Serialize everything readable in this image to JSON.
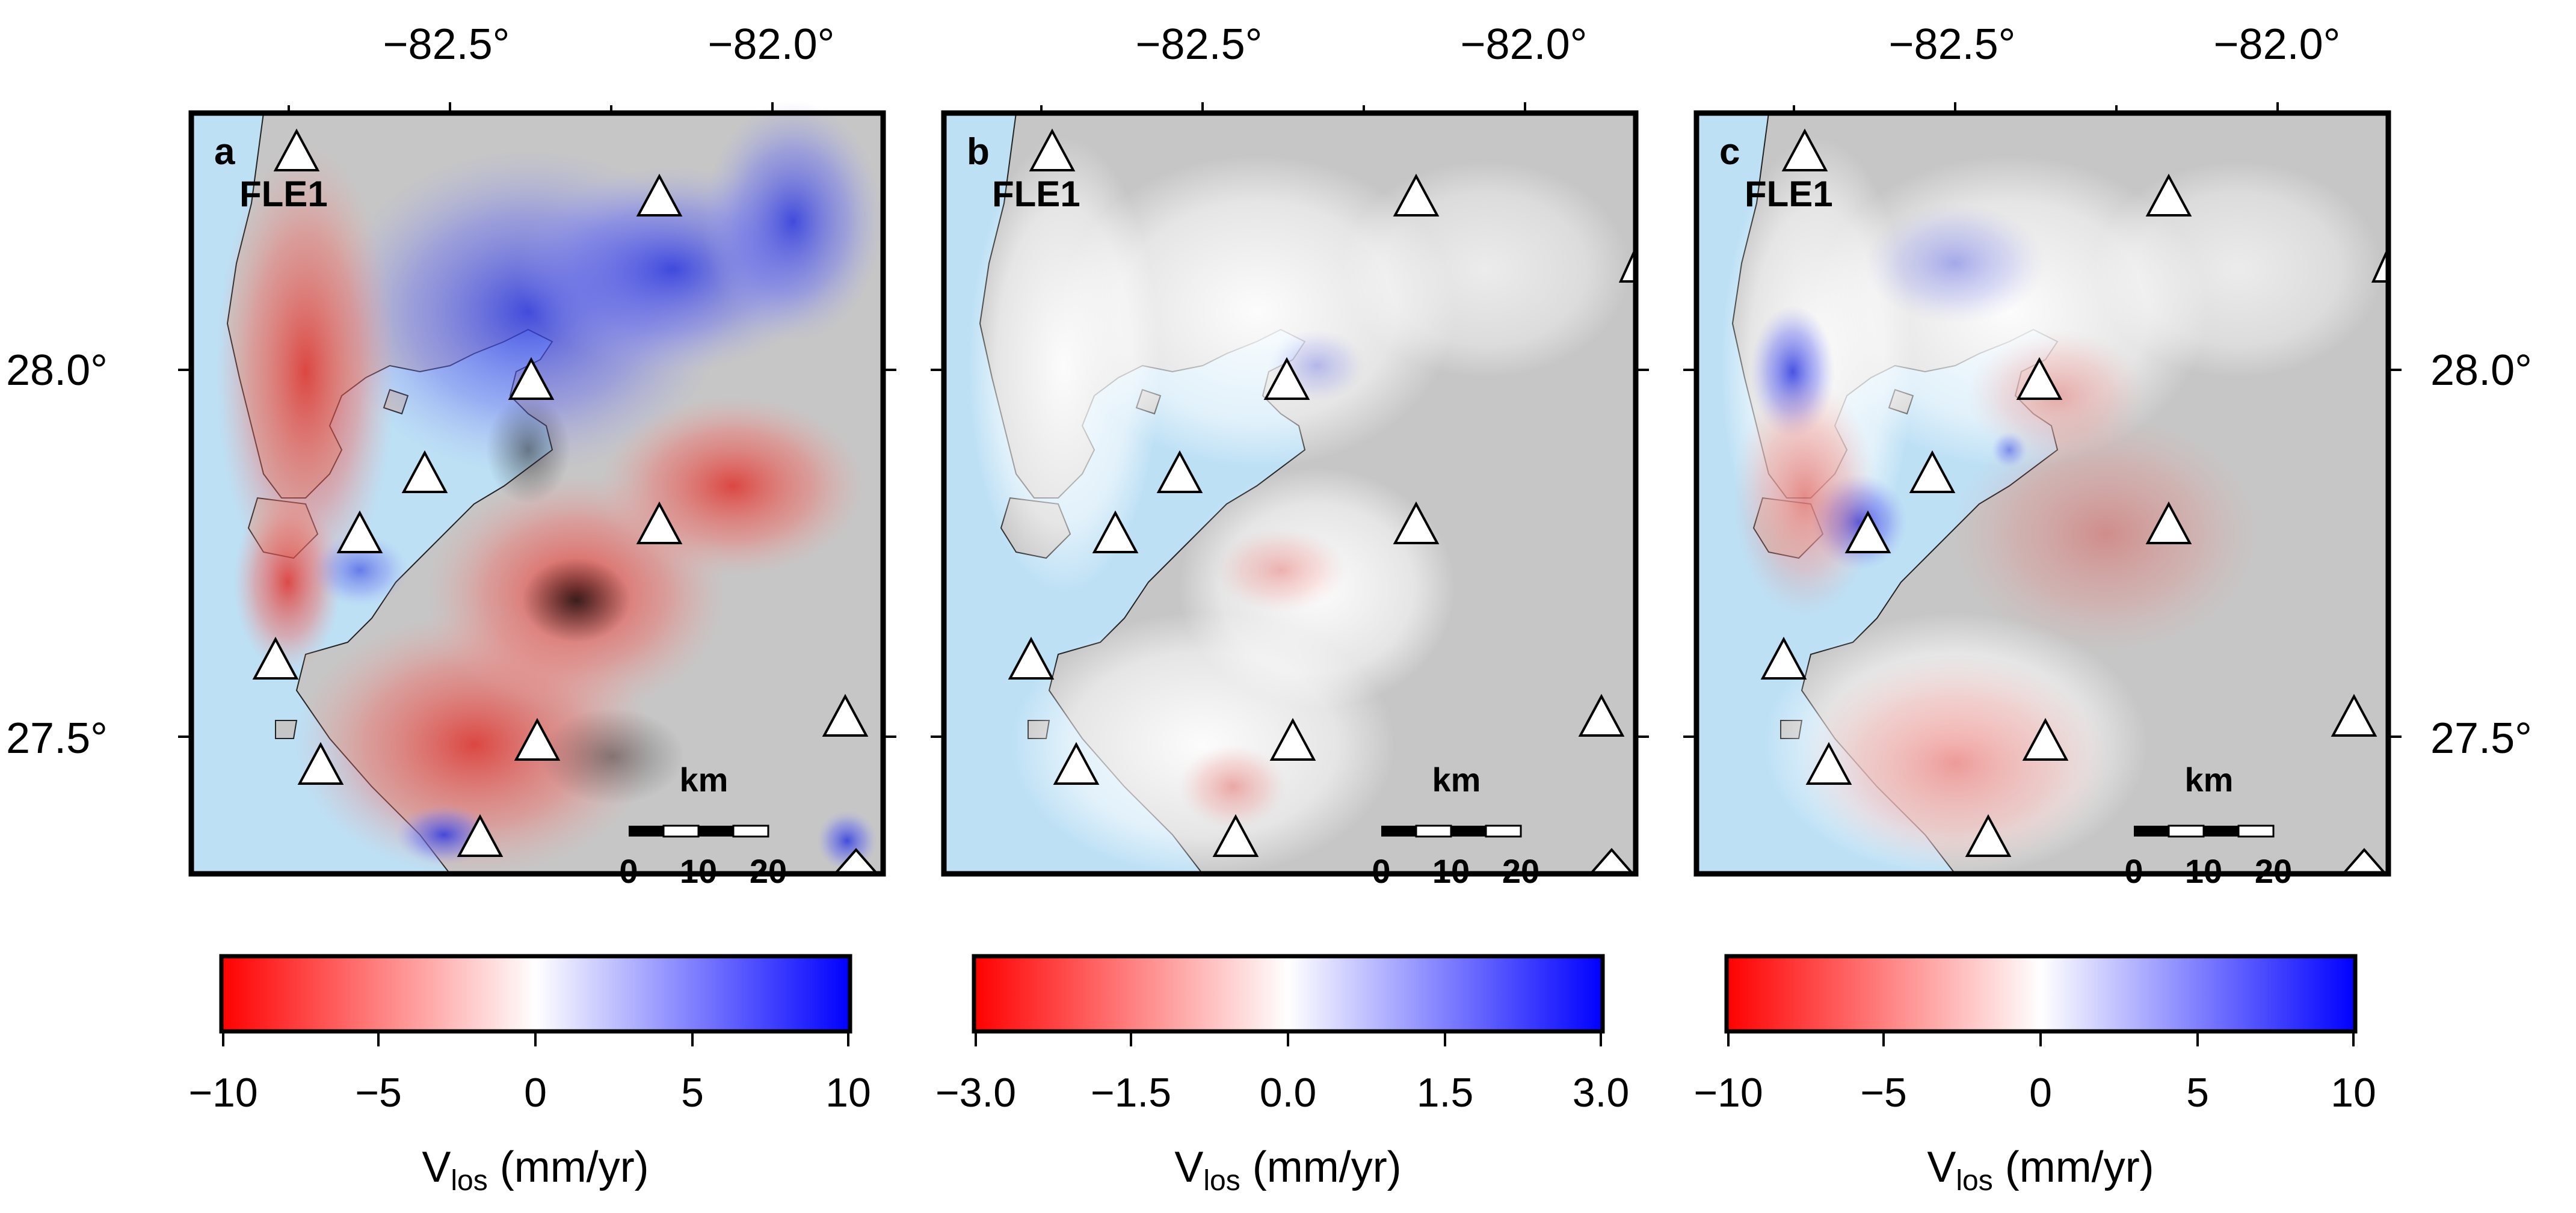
{
  "figure": {
    "top_lon_labels": [
      "−82.5°",
      "−82.0°"
    ],
    "lat_labels": [
      "28.0°",
      "27.5°"
    ],
    "station_label": "FLE1",
    "scale": {
      "unit": "km",
      "ticks": [
        "0",
        "10",
        "20"
      ]
    },
    "colors": {
      "water": "#bde0f5",
      "land": "#c6c6c6",
      "neg": "#ff0000",
      "zero": "#ffffff",
      "pos": "#0000ff",
      "frame": "#000000"
    }
  },
  "panels": [
    {
      "id": "a",
      "letter": "a",
      "colorbar_ticks": [
        "−10",
        "−5",
        "0",
        "5",
        "10"
      ],
      "colorbar_range_mm_yr": [
        -10,
        10
      ],
      "colorbar_label_main": "V",
      "colorbar_label_sub": "los",
      "colorbar_label_units": " (mm/yr)"
    },
    {
      "id": "b",
      "letter": "b",
      "colorbar_ticks": [
        "−3.0",
        "−1.5",
        "0.0",
        "1.5",
        "3.0"
      ],
      "colorbar_range_mm_yr": [
        -3,
        3
      ],
      "colorbar_label_main": "V",
      "colorbar_label_sub": "los",
      "colorbar_label_units": " (mm/yr)"
    },
    {
      "id": "c",
      "letter": "c",
      "colorbar_ticks": [
        "−10",
        "−5",
        "0",
        "5",
        "10"
      ],
      "colorbar_range_mm_yr": [
        -10,
        10
      ],
      "colorbar_label_main": "V",
      "colorbar_label_sub": "los",
      "colorbar_label_units": " (mm/yr)"
    }
  ]
}
